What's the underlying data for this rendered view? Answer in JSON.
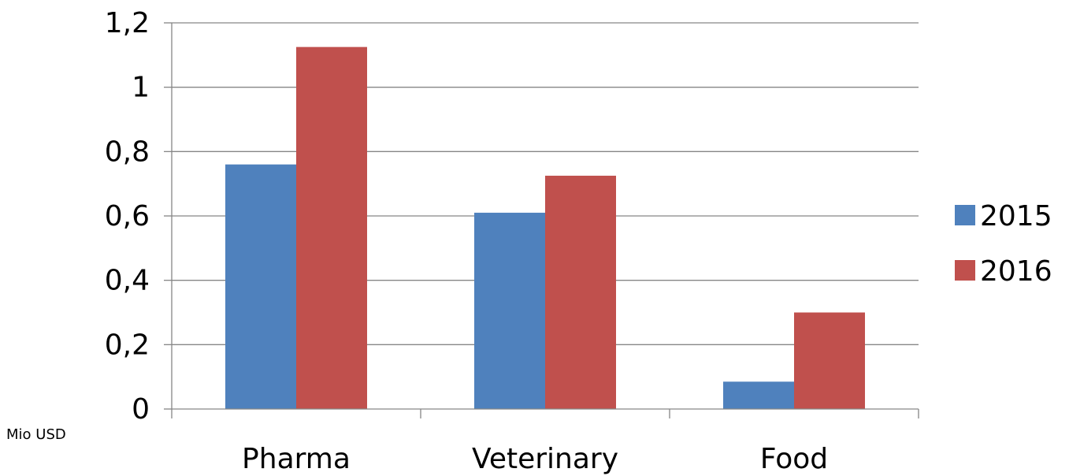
{
  "chart_data": {
    "type": "bar",
    "categories": [
      "Pharma",
      "Veterinary",
      "Food"
    ],
    "series": [
      {
        "name": "2015",
        "values": [
          0.76,
          0.61,
          0.085
        ],
        "color": "#4F81BD"
      },
      {
        "name": "2016",
        "values": [
          1.125,
          0.725,
          0.3
        ],
        "color": "#C0504D"
      }
    ],
    "y_ticks": [
      "0",
      "0,2",
      "0,4",
      "0,6",
      "0,8",
      "1",
      "1,2"
    ],
    "ylim": [
      0,
      1.2
    ],
    "grid": true,
    "legend": "right",
    "unit_label": "Mio USD",
    "gridline_color": "#868686"
  }
}
